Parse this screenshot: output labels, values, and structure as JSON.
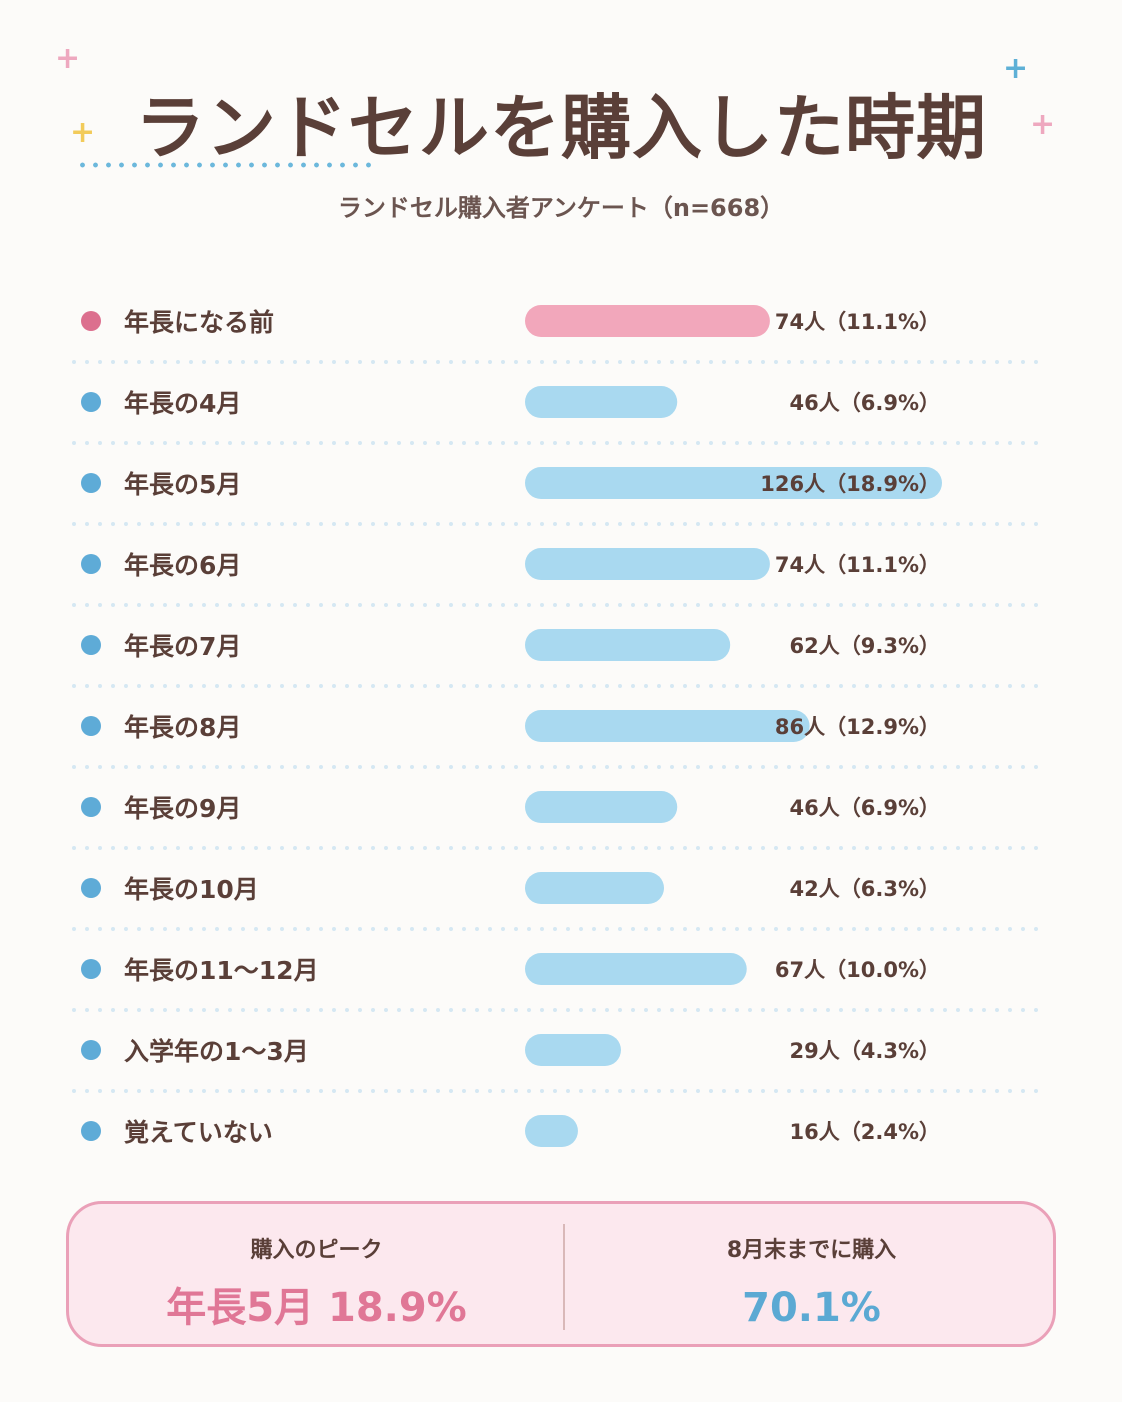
{
  "header": {
    "title": "ランドセルを購入した時期",
    "subtitle": "ランドセル購入者アンケート（n=668）"
  },
  "chart_data": {
    "type": "bar",
    "orientation": "horizontal",
    "categories": [
      "年長になる前",
      "年長の4月",
      "年長の5月",
      "年長の6月",
      "年長の7月",
      "年長の8月",
      "年長の9月",
      "年長の10月",
      "年長の11〜12月",
      "入学年の1〜3月",
      "覚えていない"
    ],
    "values": [
      74,
      46,
      126,
      74,
      62,
      86,
      46,
      42,
      67,
      29,
      16
    ],
    "value_labels": [
      "74人（11.1%）",
      "46人（6.9%）",
      "126人（18.9%）",
      "74人（11.1%）",
      "62人（9.3%）",
      "86人（12.9%）",
      "46人（6.9%）",
      "42人（6.3%）",
      "67人（10.0%）",
      "29人（4.3%）",
      "16人（2.4%）"
    ],
    "xlim": [
      0,
      126
    ],
    "highlight_index": 0,
    "colors": {
      "highlight_bar": "#f2a7bb",
      "bar": "#a9d9f0",
      "highlight_marker": "#dc6f8e",
      "marker": "#5eabd7",
      "separator": "#d5e8f3"
    }
  },
  "summary": {
    "left": {
      "label": "購入のピーク",
      "value": "年長5月 18.9%"
    },
    "right": {
      "label": "8月末までに購入",
      "value": "70.1%"
    }
  }
}
